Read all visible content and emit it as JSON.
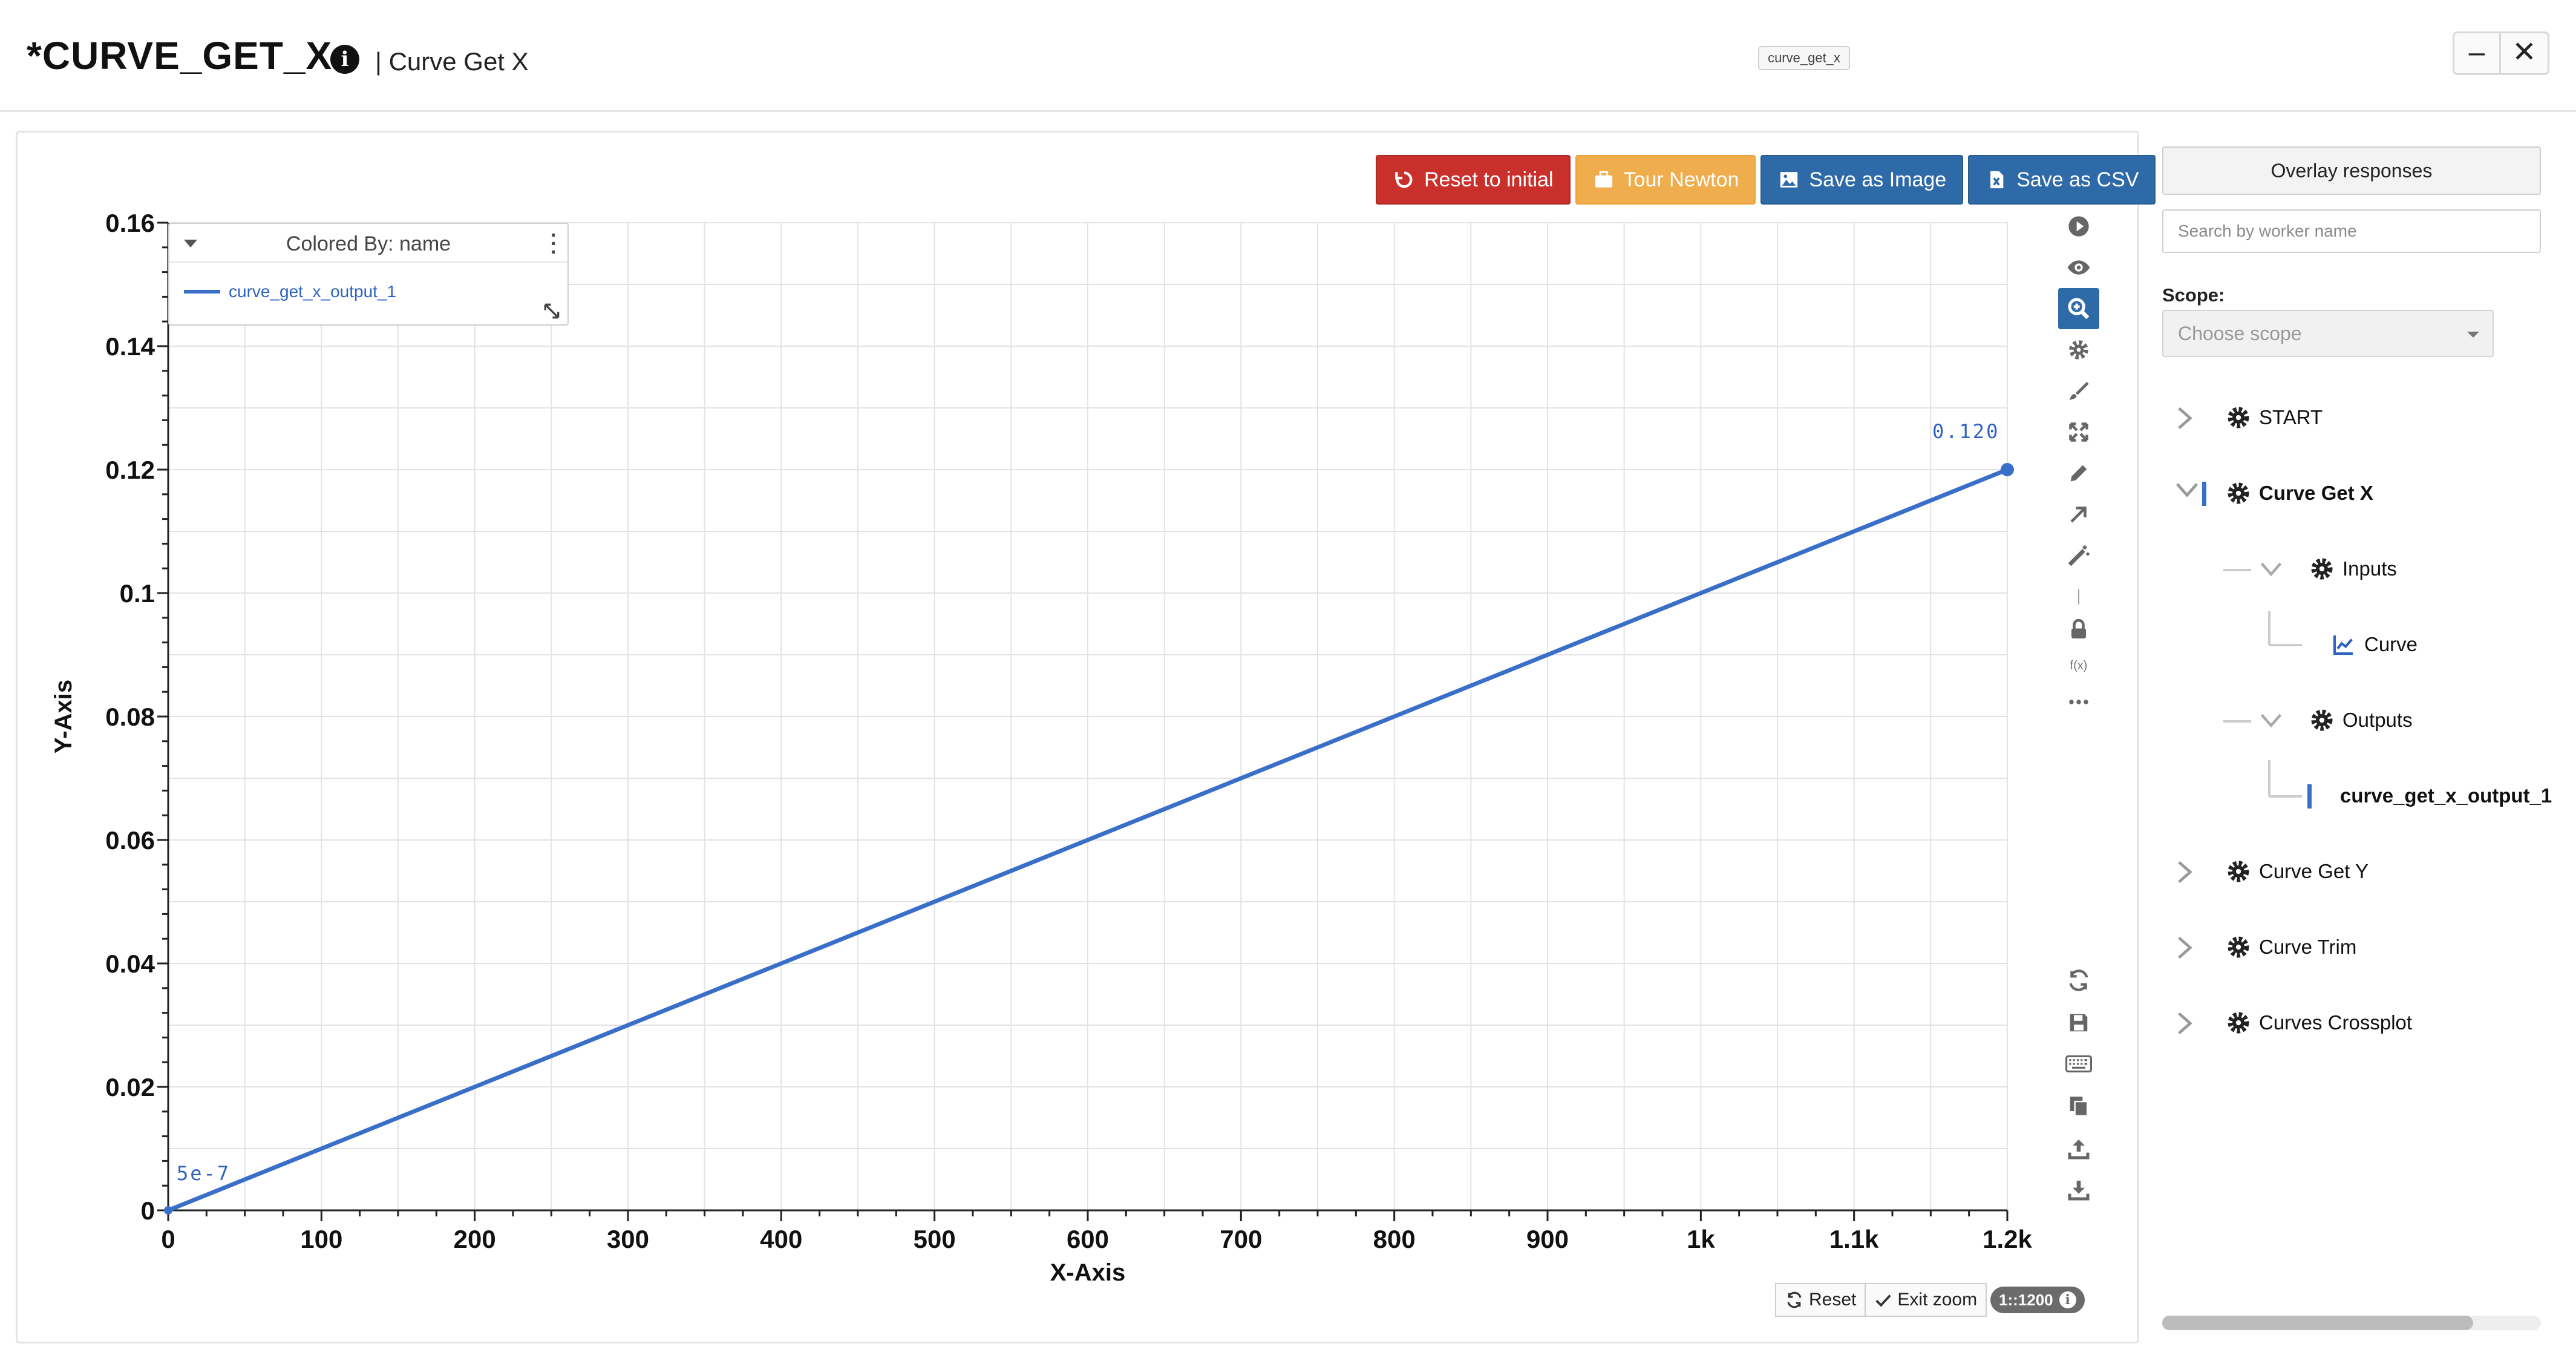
{
  "header": {
    "title": "*CURVE_GET_X",
    "subtitle": "| Curve Get X",
    "tooltip": "curve_get_x",
    "info_icon": "info-icon",
    "window_buttons": {
      "minimize": "–",
      "close": "✕"
    }
  },
  "chart_toolbar": {
    "reset_label": "Reset to initial",
    "tour_label": "Tour Newton",
    "save_image_label": "Save as Image",
    "save_csv_label": "Save as CSV"
  },
  "legend": {
    "title": "Colored By: name",
    "items": [
      {
        "label": "curve_get_x_output_1",
        "color": "#3a6fc9"
      }
    ]
  },
  "chart_data": {
    "type": "line",
    "xlabel": "X-Axis",
    "ylabel": "Y-Axis",
    "xlim": [
      0,
      1200
    ],
    "ylim": [
      0,
      0.16
    ],
    "x_ticks": [
      0,
      100,
      200,
      300,
      400,
      500,
      600,
      700,
      800,
      900,
      1000,
      1100,
      1200
    ],
    "x_tick_labels": [
      "0",
      "100",
      "200",
      "300",
      "400",
      "500",
      "600",
      "700",
      "800",
      "900",
      "1k",
      "1.1k",
      "1.2k"
    ],
    "y_ticks": [
      0,
      0.02,
      0.04,
      0.06,
      0.08,
      0.1,
      0.12,
      0.14,
      0.16
    ],
    "y_tick_labels": [
      "0",
      "0.02",
      "0.04",
      "0.06",
      "0.08",
      "0.1",
      "0.12",
      "0.14",
      "0.16"
    ],
    "grid": true,
    "legend_position": "top-left",
    "series": [
      {
        "name": "curve_get_x_output_1",
        "color": "#3a6fc9",
        "x": [
          0,
          1200
        ],
        "y": [
          5e-07,
          0.12
        ]
      }
    ],
    "annotations": [
      {
        "text": "5e-7",
        "x": 0,
        "y": 5e-07
      },
      {
        "text": "0.120",
        "x": 1200,
        "y": 0.12
      }
    ]
  },
  "side_tools": [
    "play-icon",
    "eye-icon",
    "zoom-in-icon",
    "gear-icon",
    "brush-icon",
    "expand-icon",
    "pencil-icon",
    "arrow-icon",
    "magic-wand-icon",
    "divider",
    "lock-icon",
    "function-icon",
    "more-icon",
    "refresh-icon",
    "save-icon",
    "keyboard-icon",
    "copy-icon",
    "upload-icon",
    "download-icon"
  ],
  "side_tool_fx": "f(x)",
  "zoom_bar": {
    "reset_label": "Reset",
    "exit_label": "Exit zoom",
    "ratio": "1::1200"
  },
  "sidebar": {
    "overlay_label": "Overlay responses",
    "search_placeholder": "Search by worker name",
    "scope_label": "Scope:",
    "scope_placeholder": "Choose scope",
    "tree": {
      "start": "START",
      "curve_get_x": "Curve Get X",
      "inputs": "Inputs",
      "curve": "Curve",
      "outputs": "Outputs",
      "output_item": "curve_get_x_output_1",
      "curve_get_y": "Curve Get Y",
      "curve_trim": "Curve Trim",
      "curves_crossplot": "Curves Crossplot"
    }
  }
}
